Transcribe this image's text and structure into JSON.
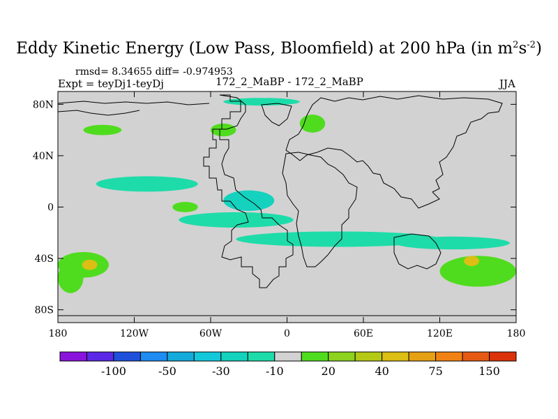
{
  "chart_data": {
    "type": "heatmap",
    "title_main": "Eddy Kinetic Energy (Low Pass, Bloomfield) at 200 hPa (in m",
    "title_sup1": "2",
    "title_mid": "s",
    "title_sup2": "-2",
    "title_end": ")",
    "stats_label": "rmsd= 8.34655 diff= -0.974953",
    "left_label": "Expt = teyDj1-teyDj",
    "center_label": "172_2_MaBP - 172_2_MaBP",
    "right_label": "JJA",
    "x_ticks": [
      "180",
      "120W",
      "60W",
      "0",
      "60E",
      "120E",
      "180"
    ],
    "x_tick_values": [
      -180,
      -120,
      -60,
      0,
      60,
      120,
      180
    ],
    "y_ticks": [
      "80N",
      "40N",
      "0",
      "40S",
      "80S"
    ],
    "y_tick_values": [
      80,
      40,
      0,
      -40,
      -80
    ],
    "xlim": [
      -180,
      180
    ],
    "ylim": [
      -90,
      90
    ],
    "colorbar": {
      "colors": [
        "#8a14dc",
        "#5a28e6",
        "#1e50dc",
        "#1e8cf0",
        "#14aadc",
        "#14c8dc",
        "#14d2be",
        "#1edcaa",
        "#d2d2d2",
        "#50dc1e",
        "#8cd21e",
        "#b4c814",
        "#dcbe14",
        "#e6a014",
        "#f08214",
        "#e65a14",
        "#dc320a"
      ],
      "tick_labels": [
        "-100",
        "-50",
        "-30",
        "-10",
        "20",
        "40",
        "75",
        "150"
      ],
      "tick_boundaries": [
        2,
        4,
        6,
        8,
        10,
        12,
        14,
        16
      ]
    },
    "background_value": 0,
    "regions": [
      {
        "lon": -40,
        "lat": -10,
        "rx": 45,
        "ry": 6,
        "level": "-10"
      },
      {
        "lon": 40,
        "lat": -25,
        "rx": 80,
        "ry": 6,
        "level": "-10"
      },
      {
        "lon": 130,
        "lat": -28,
        "rx": 45,
        "ry": 5,
        "level": "-10"
      },
      {
        "lon": -110,
        "lat": 18,
        "rx": 40,
        "ry": 6,
        "level": "-10"
      },
      {
        "lon": -20,
        "lat": 82,
        "rx": 30,
        "ry": 3,
        "level": "-10"
      },
      {
        "lon": -30,
        "lat": 5,
        "rx": 20,
        "ry": 8,
        "level": "-30"
      },
      {
        "lon": -160,
        "lat": -45,
        "rx": 20,
        "ry": 10,
        "level": "20"
      },
      {
        "lon": -170,
        "lat": -55,
        "rx": 10,
        "ry": 12,
        "level": "20"
      },
      {
        "lon": 150,
        "lat": -50,
        "rx": 30,
        "ry": 12,
        "level": "20"
      },
      {
        "lon": 20,
        "lat": 65,
        "rx": 10,
        "ry": 7,
        "level": "20"
      },
      {
        "lon": -50,
        "lat": 60,
        "rx": 10,
        "ry": 5,
        "level": "20"
      },
      {
        "lon": -145,
        "lat": 60,
        "rx": 15,
        "ry": 4,
        "level": "20"
      },
      {
        "lon": -80,
        "lat": 0,
        "rx": 10,
        "ry": 4,
        "level": "20"
      },
      {
        "lon": -155,
        "lat": -45,
        "rx": 6,
        "ry": 4,
        "level": "40"
      },
      {
        "lon": 145,
        "lat": -42,
        "rx": 6,
        "ry": 4,
        "level": "40"
      }
    ]
  }
}
